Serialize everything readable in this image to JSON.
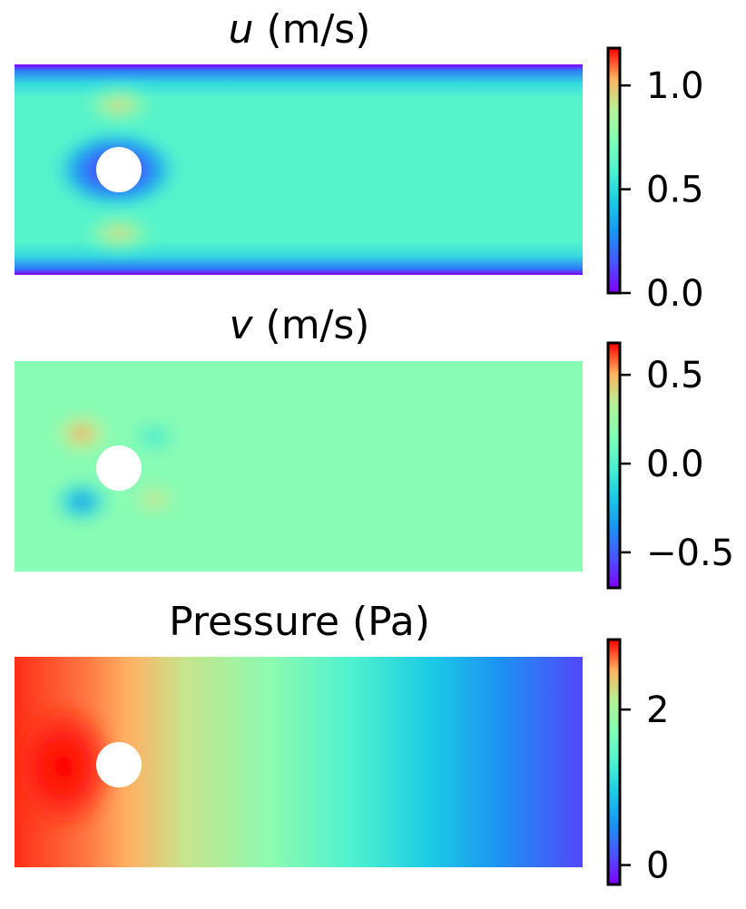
{
  "chart_data": [
    {
      "type": "heatmap",
      "title_symbol": "u",
      "title": " (m/s)",
      "colormap": "rainbow",
      "colorbar": {
        "range": [
          0.0,
          1.18
        ],
        "ticks": [
          0.0,
          0.5,
          1.0
        ],
        "tick_labels": [
          "0.0",
          "0.5",
          "1.0"
        ]
      },
      "field": "x-velocity around a cylinder in a channel: near zero at the top and bottom walls and at the cylinder, about 0.6 in the bulk, about 0.9 above and below the cylinder"
    },
    {
      "type": "heatmap",
      "title_symbol": "v",
      "title": " (m/s)",
      "colormap": "rainbow",
      "colorbar": {
        "range": [
          -0.7,
          0.68
        ],
        "ticks": [
          -0.5,
          0.0,
          0.5
        ],
        "tick_labels": [
          "−0.5",
          "0.0",
          "0.5"
        ]
      },
      "field": "y-velocity: about 0 almost everywhere, positive lobes upstream-above and downstream-below the cylinder, negative lobes upstream-below and downstream-above"
    },
    {
      "type": "heatmap",
      "title": "Pressure (Pa)",
      "colormap": "rainbow",
      "colorbar": {
        "range": [
          -0.25,
          2.9
        ],
        "ticks": [
          0,
          2
        ],
        "tick_labels": [
          "0",
          "2"
        ]
      },
      "field": "pressure decreasing roughly linearly from about 2.9 at the inlet (left) to about -0.1 at the outlet (right), highest just upstream of the cylinder"
    }
  ]
}
